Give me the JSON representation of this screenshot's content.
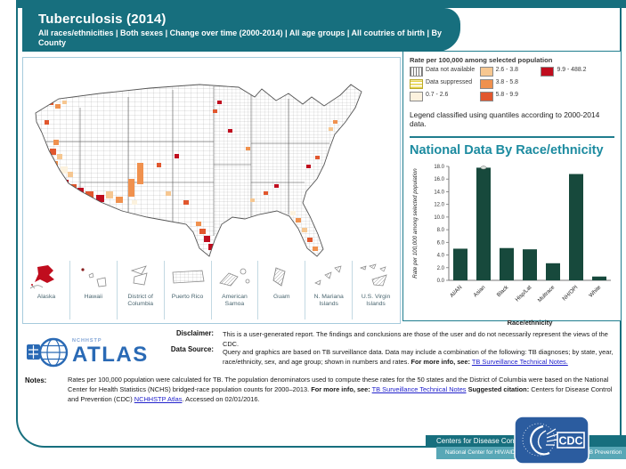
{
  "colors": {
    "teal": "#176F7E",
    "teal_mid": "#1F7D8E",
    "teal_bright": "#1C8BA0",
    "panel_blue": "#A6CBDC",
    "bar_green": "#17493C",
    "link": "#2222CC",
    "footer_light": "#58A7B6",
    "cdc_blue": "#2B5C9F",
    "atlas_blue": "#2A6AB5",
    "alaska_red": "#C00D1E"
  },
  "header": {
    "title": "Tuberculosis (2014)",
    "subtitle": "All races/ethnicities | Both sexes | Change over time (2000-2014) | All age groups | All coutries of birth | By County"
  },
  "legend": {
    "heading": "Rate per 100,000 among selected population",
    "items": [
      {
        "label": "Data not available",
        "pattern": "hatch-vertical"
      },
      {
        "label": "Data suppressed",
        "pattern": "stripes-yellow"
      },
      {
        "label": "0.7 - 2.6",
        "color": "#FCF2DE"
      },
      {
        "label": "2.6 - 3.8",
        "color": "#F6C791"
      },
      {
        "label": "3.8 - 5.8",
        "color": "#F0914E"
      },
      {
        "label": "5.8 - 9.9",
        "color": "#E1572E"
      },
      {
        "label": "9.9 - 488.2",
        "color": "#C00D1E"
      }
    ],
    "note": "Legend classified using quantiles according to 2000-2014 data."
  },
  "map": {
    "insets": [
      {
        "label": "Alaska"
      },
      {
        "label": "Hawaii"
      },
      {
        "label": "District of Columbia"
      },
      {
        "label": "Puerto Rico"
      },
      {
        "label": "American Samoa"
      },
      {
        "label": "Guam"
      },
      {
        "label": "N. Mariana Islands"
      },
      {
        "label": "U.S. Virgin Islands"
      }
    ]
  },
  "chart_data": {
    "type": "bar",
    "title": "National Data By Race/ethnicity",
    "categories": [
      "AI/AN",
      "Asian",
      "Black",
      "Hisp/Lat",
      "Multrace",
      "NH/OPI",
      "White"
    ],
    "values": [
      5.0,
      17.8,
      5.1,
      4.9,
      2.7,
      16.8,
      0.6
    ],
    "xlabel": "Race/ethnicity",
    "ylabel": "Rate per 100,000 among selected population",
    "ylim": [
      0,
      18
    ],
    "ytick_step": 2,
    "grid": false,
    "legend_position": "none",
    "bar_color": "#17493C",
    "point_marker_category": "Asian"
  },
  "atlas": {
    "sub": "NCHHSTP",
    "name": "ATLAS"
  },
  "disclaimer": {
    "label": "Disclaimer:",
    "text": "This is a user-generated report. The findings and conclusions are those of the user and do not necessarily represent the views of the CDC."
  },
  "data_source": {
    "label": "Data Source:",
    "text": "Query and graphics are based on TB surveillance data. Data may include a combination of the following: TB diagnoses; by state, year, race/ethnicity, sex, and age group; shown in numbers and rates.",
    "more_info": "For more info, see:",
    "link": "TB Surveillance Technical Notes."
  },
  "notes": {
    "label": "Notes:",
    "text1": "Rates per 100,000 population were calculated for TB. The population denominators used to compute these rates for the 50 states and the District of Columbia were based on the National Center for Health Statistics (NCHS) bridged-race population counts for 2000–2013.",
    "more_info": "For more info, see:",
    "link1": "TB Surveillance Technical Notes",
    "suggested": "Suggested citation:",
    "text2": "Centers for Disease Control and Prevention (CDC)",
    "link2": "NCHHSTP Atlas",
    "text3": ". Accessed on 02/01/2016."
  },
  "footer": {
    "line1": "Centers for Disease Control and Prevention",
    "line2": "National Center for HIV/AIDS, Viral Hepatitis, STD, and TB Prevention",
    "cdc_text": "CDC"
  }
}
